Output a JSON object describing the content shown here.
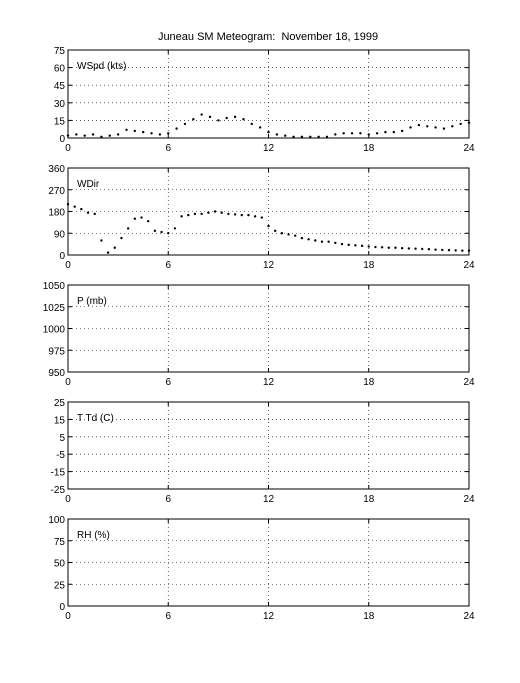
{
  "title": "Juneau SM Meteogram:  November 18, 1999",
  "chart_data": [
    {
      "type": "scatter",
      "label": "WSpd (kts)",
      "xlim": [
        0,
        24
      ],
      "ylim": [
        0,
        75
      ],
      "xticks": [
        0,
        6,
        12,
        18,
        24
      ],
      "yticks": [
        0,
        15,
        30,
        45,
        60,
        75
      ],
      "grid": true,
      "x": [
        0,
        0.5,
        1,
        1.5,
        2,
        2.5,
        3,
        3.5,
        4,
        4.5,
        5,
        5.5,
        6,
        6.5,
        7,
        7.5,
        8,
        8.5,
        9,
        9.5,
        10,
        10.5,
        11,
        11.5,
        12,
        12.5,
        13,
        13.5,
        14,
        14.5,
        15,
        15.5,
        16,
        16.5,
        17,
        17.5,
        18,
        18.5,
        19,
        19.5,
        20,
        20.5,
        21,
        21.5,
        22,
        22.5,
        23,
        23.5,
        24
      ],
      "y": [
        2,
        3,
        2,
        3,
        1,
        2,
        3,
        7,
        6,
        5,
        4,
        3,
        4,
        8,
        12,
        16,
        20,
        18,
        15,
        17,
        18,
        16,
        12,
        9,
        5,
        3,
        2,
        1,
        1,
        1,
        1,
        1,
        3,
        4,
        4,
        4,
        3,
        4,
        5,
        5,
        6,
        9,
        11,
        10,
        9,
        8,
        10,
        12,
        13
      ]
    },
    {
      "type": "scatter",
      "label": "WDir",
      "xlim": [
        0,
        24
      ],
      "ylim": [
        0,
        360
      ],
      "xticks": [
        0,
        6,
        12,
        18,
        24
      ],
      "yticks": [
        0,
        90,
        180,
        270,
        360
      ],
      "grid": true,
      "x": [
        0,
        0.4,
        0.8,
        1.2,
        1.6,
        2,
        2.4,
        2.8,
        3.2,
        3.6,
        4,
        4.4,
        4.8,
        5.2,
        5.6,
        6,
        6.4,
        6.8,
        7.2,
        7.6,
        8,
        8.4,
        8.8,
        9.2,
        9.6,
        10,
        10.4,
        10.8,
        11.2,
        11.6,
        12,
        12.4,
        12.8,
        13.2,
        13.6,
        14,
        14.4,
        14.8,
        15.2,
        15.6,
        16,
        16.4,
        16.8,
        17.2,
        17.6,
        18,
        18.4,
        18.8,
        19.2,
        19.6,
        20,
        20.4,
        20.8,
        21.2,
        21.6,
        22,
        22.4,
        22.8,
        23.2,
        23.6,
        24
      ],
      "y": [
        210,
        200,
        190,
        175,
        170,
        60,
        10,
        30,
        70,
        110,
        150,
        155,
        140,
        100,
        95,
        90,
        110,
        160,
        165,
        170,
        170,
        175,
        180,
        175,
        170,
        168,
        165,
        165,
        160,
        155,
        120,
        100,
        90,
        85,
        80,
        70,
        65,
        60,
        55,
        55,
        50,
        45,
        42,
        40,
        38,
        35,
        33,
        32,
        30,
        30,
        28,
        27,
        26,
        25,
        24,
        22,
        21,
        20,
        19,
        18,
        18
      ]
    },
    {
      "type": "line",
      "label": "P (mb)",
      "xlim": [
        0,
        24
      ],
      "ylim": [
        950,
        1050
      ],
      "xticks": [
        0,
        6,
        12,
        18,
        24
      ],
      "yticks": [
        950,
        975,
        1000,
        1025,
        1050
      ],
      "grid": true,
      "x": [],
      "y": []
    },
    {
      "type": "line",
      "label": "T Td (C)",
      "xlim": [
        0,
        24
      ],
      "ylim": [
        -25,
        25
      ],
      "xticks": [
        0,
        6,
        12,
        18,
        24
      ],
      "yticks": [
        -25,
        -15,
        -5,
        5,
        15,
        25
      ],
      "ytick_labels": [
        "-25",
        "-15",
        "-5",
        "5",
        "15",
        "25"
      ],
      "grid": true,
      "x": [],
      "y": []
    },
    {
      "type": "line",
      "label": "RH (%)",
      "xlim": [
        0,
        24
      ],
      "ylim": [
        0,
        100
      ],
      "xticks": [
        0,
        6,
        12,
        18,
        24
      ],
      "yticks": [
        0,
        25,
        50,
        75,
        100
      ],
      "grid": true,
      "x": [],
      "y": []
    }
  ]
}
